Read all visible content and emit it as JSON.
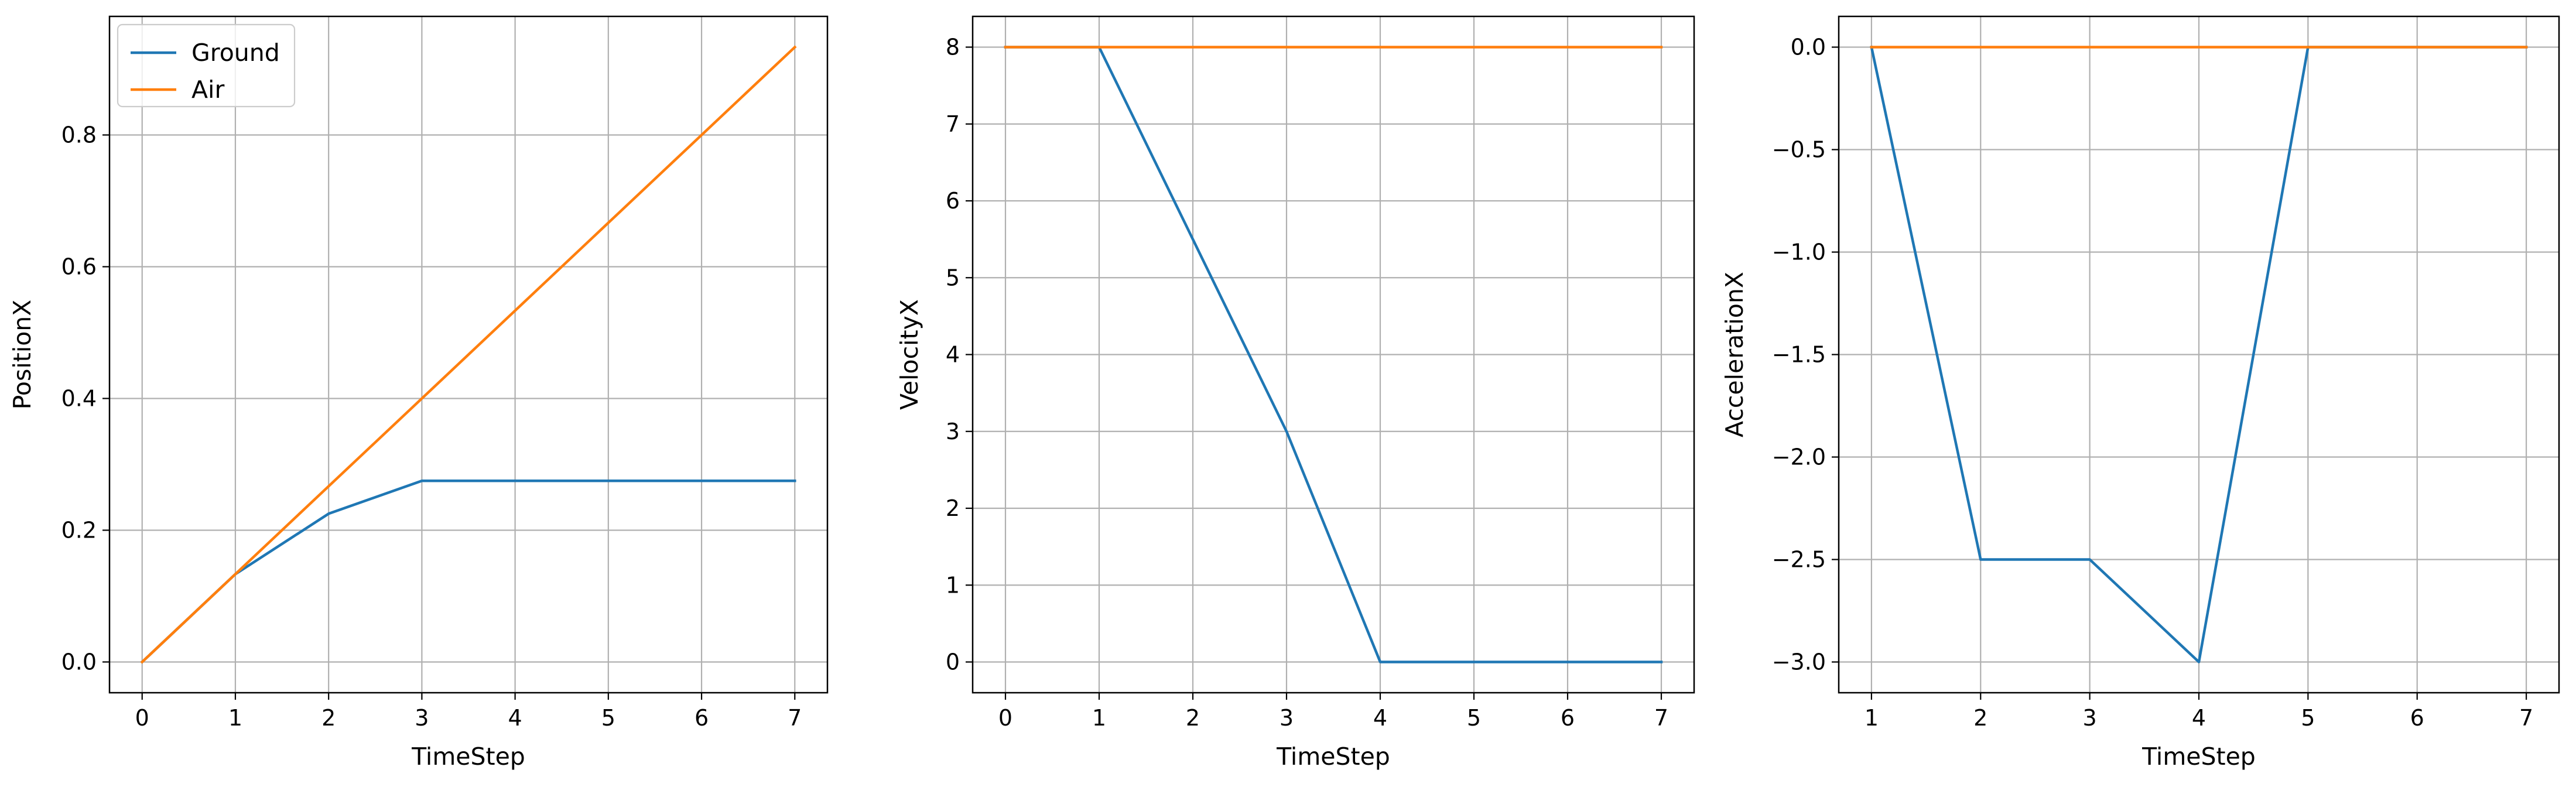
{
  "colors": {
    "series_ground": "#1f77b4",
    "series_air": "#ff7f0e",
    "grid": "#b0b0b0",
    "axes": "#000000",
    "background": "#ffffff"
  },
  "chart_data": [
    {
      "type": "line",
      "title": "",
      "xlabel": "TimeStep",
      "ylabel": "PositionX",
      "xlim": [
        -0.35,
        7.35
      ],
      "ylim": [
        -0.0467,
        0.98
      ],
      "xticks": [
        0,
        1,
        2,
        3,
        4,
        5,
        6,
        7
      ],
      "xtick_labels": [
        "0",
        "1",
        "2",
        "3",
        "4",
        "5",
        "6",
        "7"
      ],
      "yticks": [
        0.0,
        0.2,
        0.4,
        0.6,
        0.8
      ],
      "ytick_labels": [
        "0.0",
        "0.2",
        "0.4",
        "0.6",
        "0.8"
      ],
      "grid": true,
      "legend": "upper-left",
      "series": [
        {
          "name": "Ground",
          "x": [
            0,
            1,
            2,
            3,
            4,
            5,
            6,
            7
          ],
          "values": [
            0.0,
            0.1333,
            0.225,
            0.275,
            0.275,
            0.275,
            0.275,
            0.275
          ]
        },
        {
          "name": "Air",
          "x": [
            0,
            1,
            2,
            3,
            4,
            5,
            6,
            7
          ],
          "values": [
            0.0,
            0.1333,
            0.2667,
            0.4,
            0.5333,
            0.6667,
            0.8,
            0.9333
          ]
        }
      ]
    },
    {
      "type": "line",
      "title": "",
      "xlabel": "TimeStep",
      "ylabel": "VelocityX",
      "xlim": [
        -0.35,
        7.35
      ],
      "ylim": [
        -0.4,
        8.4
      ],
      "xticks": [
        0,
        1,
        2,
        3,
        4,
        5,
        6,
        7
      ],
      "xtick_labels": [
        "0",
        "1",
        "2",
        "3",
        "4",
        "5",
        "6",
        "7"
      ],
      "yticks": [
        0,
        1,
        2,
        3,
        4,
        5,
        6,
        7,
        8
      ],
      "ytick_labels": [
        "0",
        "1",
        "2",
        "3",
        "4",
        "5",
        "6",
        "7",
        "8"
      ],
      "grid": true,
      "legend": "none",
      "series": [
        {
          "name": "Ground",
          "x": [
            0,
            1,
            2,
            3,
            4,
            5,
            6,
            7
          ],
          "values": [
            8,
            8,
            5.5,
            3,
            0,
            0,
            0,
            0
          ]
        },
        {
          "name": "Air",
          "x": [
            0,
            1,
            2,
            3,
            4,
            5,
            6,
            7
          ],
          "values": [
            8,
            8,
            8,
            8,
            8,
            8,
            8,
            8
          ]
        }
      ]
    },
    {
      "type": "line",
      "title": "",
      "xlabel": "TimeStep",
      "ylabel": "AccelerationX",
      "xlim": [
        0.7,
        7.3
      ],
      "ylim": [
        -3.15,
        0.15
      ],
      "xticks": [
        1,
        2,
        3,
        4,
        5,
        6,
        7
      ],
      "xtick_labels": [
        "1",
        "2",
        "3",
        "4",
        "5",
        "6",
        "7"
      ],
      "yticks": [
        0.0,
        -0.5,
        -1.0,
        -1.5,
        -2.0,
        -2.5,
        -3.0
      ],
      "ytick_labels": [
        "0.0",
        "−0.5",
        "−1.0",
        "−1.5",
        "−2.0",
        "−2.5",
        "−3.0"
      ],
      "grid": true,
      "legend": "none",
      "series": [
        {
          "name": "Ground",
          "x": [
            1,
            2,
            3,
            4,
            5,
            6,
            7
          ],
          "values": [
            0.0,
            -2.5,
            -2.5,
            -3.0,
            0.0,
            0.0,
            0.0
          ]
        },
        {
          "name": "Air",
          "x": [
            1,
            2,
            3,
            4,
            5,
            6,
            7
          ],
          "values": [
            0.0,
            0.0,
            0.0,
            0.0,
            0.0,
            0.0,
            0.0
          ]
        }
      ]
    }
  ]
}
